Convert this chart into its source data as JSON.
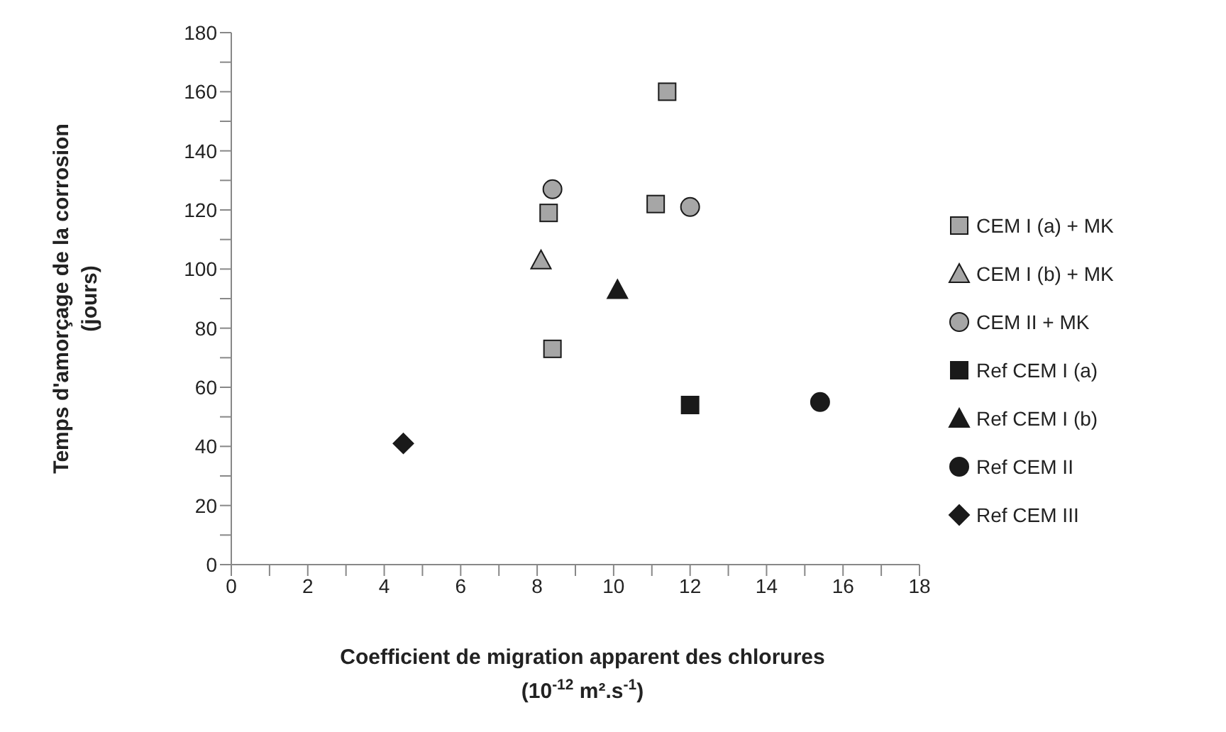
{
  "chart_data": {
    "type": "scatter",
    "xlabel": "Coefficient de migration  apparent des chlorures\n(10$^{-12}$ m².s$^{-1}$)",
    "ylabel": "Temps d'amorçage de la corrosion\n(jours)",
    "xlim": [
      0,
      18
    ],
    "ylim": [
      0,
      180
    ],
    "xticks": [
      0,
      {
        "value": 1,
        "label": null
      },
      2,
      {
        "value": 3,
        "label": null
      },
      4,
      {
        "value": 5,
        "label": null
      },
      6,
      {
        "value": 7,
        "label": null
      },
      8,
      {
        "value": 9,
        "label": null
      },
      10,
      {
        "value": 11,
        "label": null
      },
      12,
      {
        "value": 13,
        "label": null
      },
      14,
      {
        "value": 15,
        "label": null
      },
      16,
      {
        "value": 17,
        "label": null
      },
      18
    ],
    "yticks": [
      0,
      {
        "value": 10,
        "label": null
      },
      20,
      {
        "value": 30,
        "label": null
      },
      40,
      {
        "value": 50,
        "label": null
      },
      60,
      {
        "value": 70,
        "label": null
      },
      80,
      {
        "value": 90,
        "label": null
      },
      100,
      {
        "value": 110,
        "label": null
      },
      120,
      {
        "value": 130,
        "label": null
      },
      140,
      {
        "value": 150,
        "label": null
      },
      160,
      {
        "value": 170,
        "label": null
      },
      180
    ],
    "grid": false,
    "legend": "right",
    "series": [
      {
        "name": "CEM I (a) + MK",
        "color": "#a6a6a6",
        "marker": "square",
        "x": [
          11.4,
          8.3,
          11.1,
          8.4
        ],
        "values": [
          160,
          119,
          122,
          73
        ]
      },
      {
        "name": "CEM I (b) + MK",
        "color": "#a6a6a6",
        "marker": "triangle",
        "x": [
          8.1
        ],
        "values": [
          103
        ]
      },
      {
        "name": "CEM II + MK",
        "color": "#a6a6a6",
        "marker": "circle",
        "x": [
          8.4,
          12.0
        ],
        "values": [
          127,
          121
        ]
      },
      {
        "name": "Ref CEM I (a)",
        "color": "#1a1a1a",
        "marker": "square",
        "x": [
          12.0
        ],
        "values": [
          54
        ]
      },
      {
        "name": "Ref CEM I (b)",
        "color": "#1a1a1a",
        "marker": "triangle",
        "x": [
          10.1
        ],
        "values": [
          93
        ]
      },
      {
        "name": "Ref CEM II",
        "color": "#1a1a1a",
        "marker": "circle",
        "x": [
          15.4
        ],
        "values": [
          55
        ]
      },
      {
        "name": "Ref CEM III",
        "color": "#1a1a1a",
        "marker": "diamond",
        "x": [
          4.5
        ],
        "values": [
          41
        ]
      }
    ]
  }
}
